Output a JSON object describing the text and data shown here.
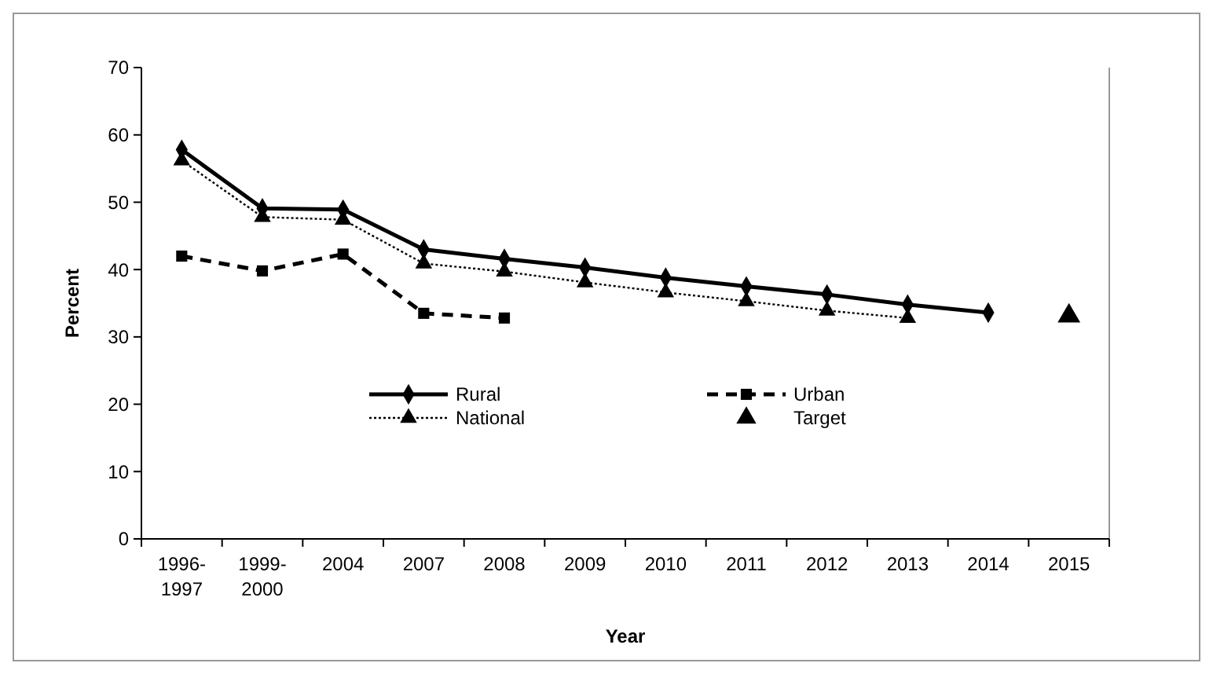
{
  "chart_data": {
    "type": "line",
    "xlabel": "Year",
    "ylabel": "Percent",
    "categories": [
      "1996-1997",
      "1999-2000",
      "2004",
      "2007",
      "2008",
      "2009",
      "2010",
      "2011",
      "2012",
      "2013",
      "2014",
      "2015"
    ],
    "series": [
      {
        "name": "Rural",
        "color": "#000000",
        "marker": "diamond",
        "line_style": "solid",
        "values": [
          57.8,
          49.1,
          48.9,
          43.0,
          41.6,
          40.3,
          38.8,
          37.5,
          36.3,
          34.8,
          33.6,
          null
        ]
      },
      {
        "name": "Urban",
        "color": "#000000",
        "marker": "square",
        "line_style": "dashed",
        "values": [
          42.0,
          39.8,
          42.3,
          33.5,
          32.8,
          null,
          null,
          null,
          null,
          null,
          null,
          null
        ]
      },
      {
        "name": "National",
        "color": "#000000",
        "marker": "triangle",
        "line_style": "dotted",
        "values": [
          56.2,
          47.8,
          47.4,
          40.9,
          39.7,
          38.1,
          36.6,
          35.3,
          33.9,
          32.8,
          null,
          null
        ]
      },
      {
        "name": "Target",
        "type": "scatter",
        "color": "#000000",
        "marker": "triangle",
        "values": [
          null,
          null,
          null,
          null,
          null,
          null,
          null,
          null,
          null,
          null,
          null,
          33.1
        ]
      }
    ],
    "ylim": [
      0,
      70
    ],
    "yticks": [
      0,
      10,
      20,
      30,
      40,
      50,
      60,
      70
    ],
    "grid": false,
    "legend": "bottom"
  }
}
